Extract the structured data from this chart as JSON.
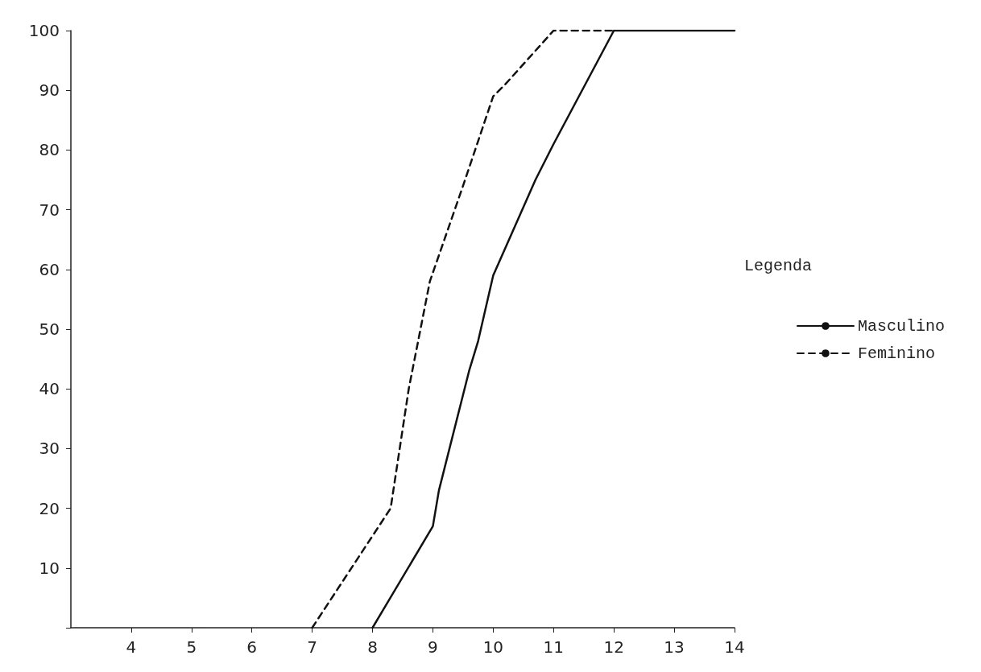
{
  "chart_data": {
    "type": "line",
    "legend_title": "Legenda",
    "legend": "right",
    "grid": false,
    "xlim": [
      3,
      14
    ],
    "xticks": [
      4,
      5,
      6,
      7,
      8,
      9,
      10,
      11,
      12,
      13,
      14
    ],
    "ylim": [
      0,
      100
    ],
    "yticks": [
      {
        "value": 0,
        "label": null
      },
      10,
      20,
      30,
      40,
      50,
      60,
      70,
      80,
      90,
      100
    ],
    "series": [
      {
        "name": "Masculino",
        "color": "#111111",
        "line_style": "solid",
        "x": [
          8,
          9,
          9.1,
          9.45,
          9.6,
          9.75,
          10,
          10.7,
          11,
          12,
          14
        ],
        "values": [
          0,
          17,
          23,
          37,
          43,
          48,
          59,
          75,
          81,
          100,
          100
        ]
      },
      {
        "name": "Feminino",
        "color": "#111111",
        "line_style": "dashed",
        "x": [
          7,
          8.3,
          8.6,
          8.95,
          9.5,
          10,
          10.2,
          11,
          12
        ],
        "values": [
          0,
          20,
          40,
          58,
          74,
          89,
          91,
          100,
          100
        ]
      }
    ]
  }
}
